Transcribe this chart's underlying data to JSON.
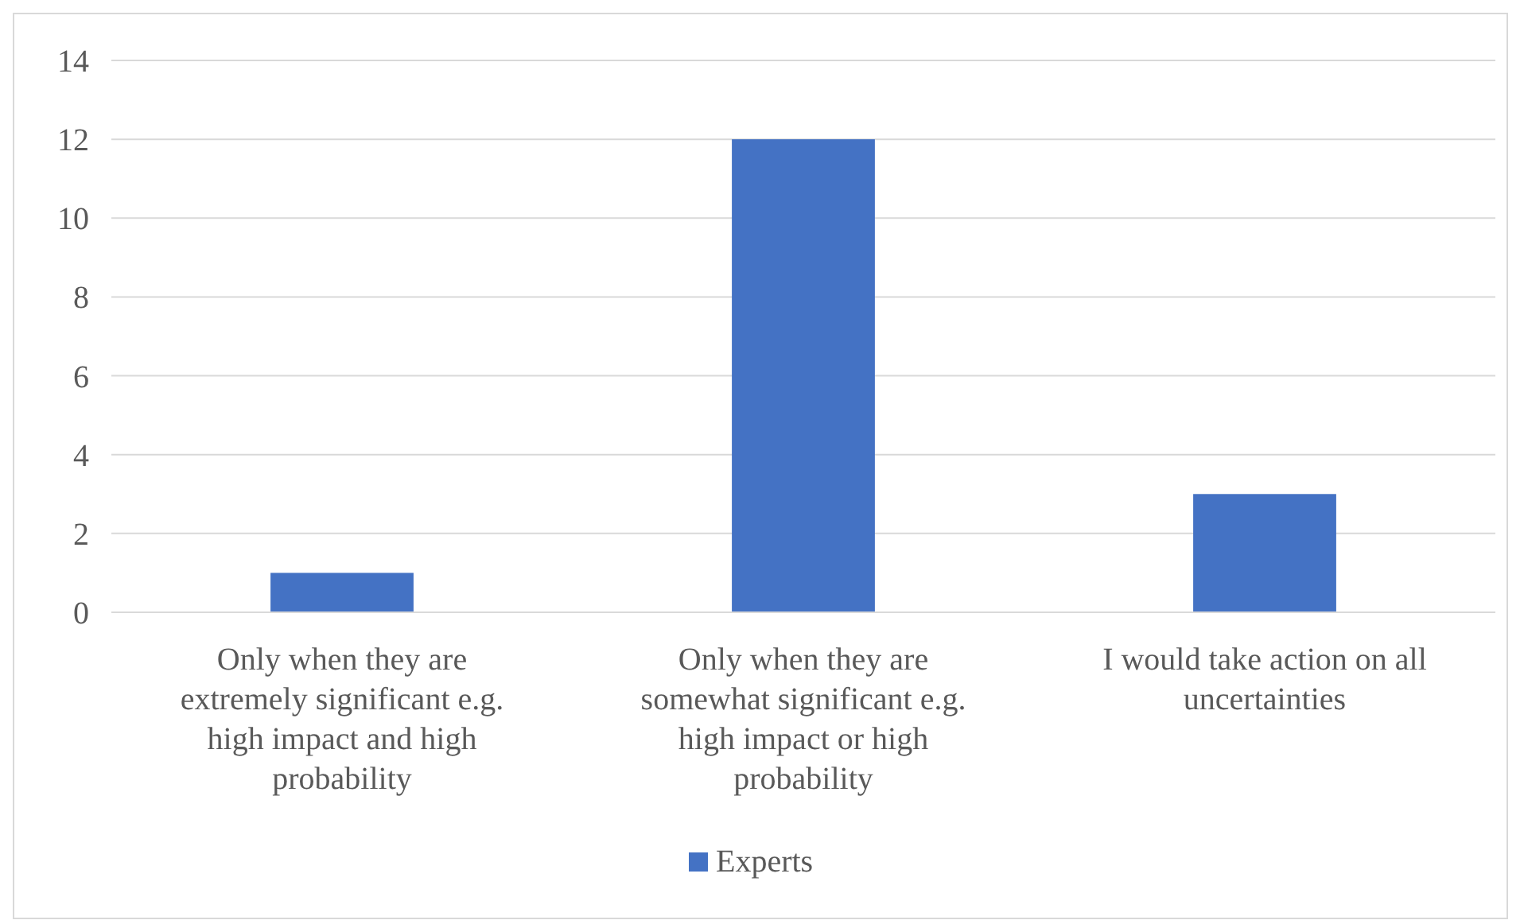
{
  "chart_data": {
    "type": "bar",
    "categories": [
      "Only when they are extremely significant e.g. high impact and high probability",
      "Only when they are somewhat significant e.g. high impact or high probability",
      "I would take action on all uncertainties"
    ],
    "series": [
      {
        "name": "Experts",
        "color": "#4472c4",
        "values": [
          1,
          12,
          3
        ]
      }
    ],
    "ylim": [
      0,
      14
    ],
    "yticks": [
      0,
      2,
      4,
      6,
      8,
      10,
      12,
      14
    ],
    "grid": "y",
    "legend": "bottom"
  }
}
